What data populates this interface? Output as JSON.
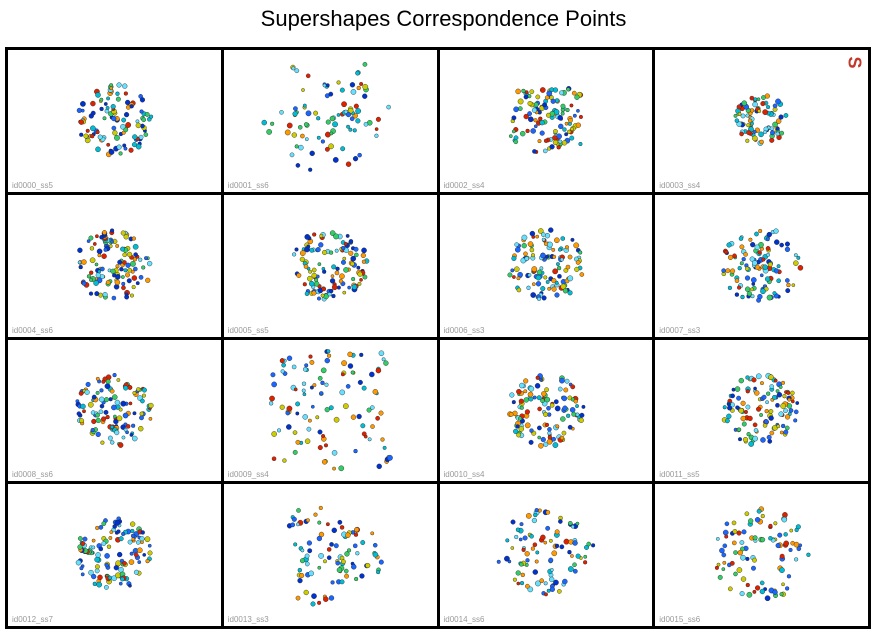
{
  "title": "Supershapes Correspondence Points",
  "corner_mark": "S",
  "point_colors": [
    "#0033cc",
    "#00bcd4",
    "#33cc66",
    "#cccc00",
    "#ff9900",
    "#dd2200",
    "#1a66ff",
    "#66e0ff"
  ],
  "cells": [
    {
      "label": "id0000_ss5",
      "shape": "blob5"
    },
    {
      "label": "id0001_ss6",
      "shape": "star6"
    },
    {
      "label": "id0002_ss4",
      "shape": "square"
    },
    {
      "label": "id0003_ss4",
      "shape": "ring"
    },
    {
      "label": "id0004_ss6",
      "shape": "round"
    },
    {
      "label": "id0005_ss5",
      "shape": "round"
    },
    {
      "label": "id0006_ss3",
      "shape": "round"
    },
    {
      "label": "id0007_ss3",
      "shape": "tri"
    },
    {
      "label": "id0008_ss6",
      "shape": "round"
    },
    {
      "label": "id0009_ss4",
      "shape": "bigstar4"
    },
    {
      "label": "id0010_ss4",
      "shape": "round"
    },
    {
      "label": "id0011_ss5",
      "shape": "round"
    },
    {
      "label": "id0012_ss7",
      "shape": "round"
    },
    {
      "label": "id0013_ss3",
      "shape": "star3"
    },
    {
      "label": "id0014_ss6",
      "shape": "hex"
    },
    {
      "label": "id0015_ss6",
      "shape": "hex"
    }
  ]
}
